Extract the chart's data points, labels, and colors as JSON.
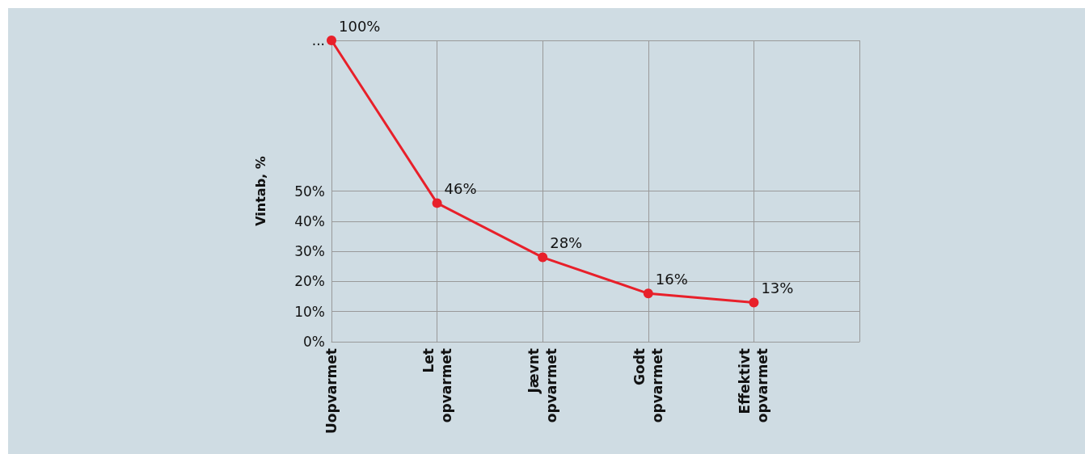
{
  "chart_data": {
    "type": "line",
    "ylabel": "Vintab, %",
    "categories": [
      "Uopvarmet",
      "Let\nopvarmet",
      "Jævnt\nopvarmet",
      "Godt\nopvarmet",
      "Effektivt\nopvarmet"
    ],
    "series": [
      {
        "color": "#e8202a",
        "values": [
          100,
          46,
          28,
          16,
          13
        ],
        "value_labels": [
          "100%",
          "46%",
          "28%",
          "16%",
          "13%"
        ]
      }
    ],
    "ylim": [
      0,
      100
    ],
    "yticks": [
      {
        "value": 0,
        "label": "0%"
      },
      {
        "value": 10,
        "label": "10%"
      },
      {
        "value": 20,
        "label": "20%"
      },
      {
        "value": 30,
        "label": "30%"
      },
      {
        "value": 40,
        "label": "40%"
      },
      {
        "value": 50,
        "label": "50%"
      },
      {
        "value": 100,
        "label": "..."
      }
    ],
    "grid": true,
    "marker": "circle",
    "line_style": "solid"
  }
}
